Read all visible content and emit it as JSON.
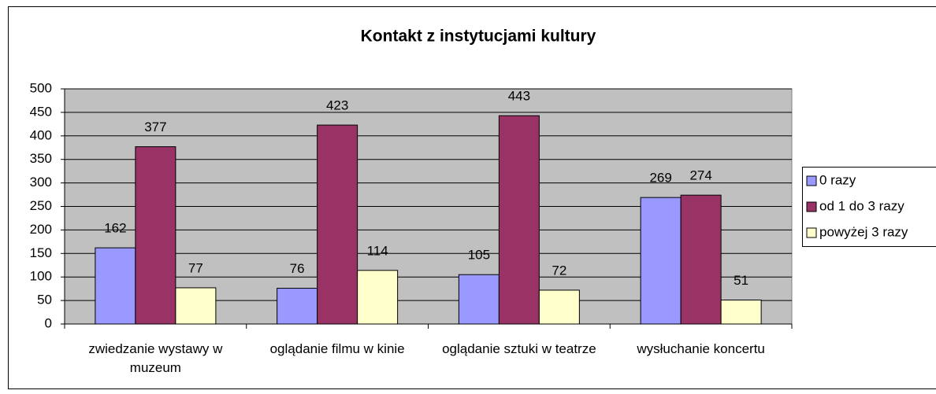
{
  "chart_data": {
    "type": "bar",
    "title": "Kontakt z instytucjami kultury",
    "categories": [
      "zwiedzanie wystawy w muzeum",
      "oglądanie filmu w kinie",
      "oglądanie sztuki w teatrze",
      "wysłuchanie koncertu"
    ],
    "series": [
      {
        "name": "0 razy",
        "color": "#9999ff",
        "values": [
          162,
          76,
          105,
          269
        ]
      },
      {
        "name": "od 1 do 3 razy",
        "color": "#993366",
        "values": [
          377,
          423,
          443,
          274
        ]
      },
      {
        "name": "powyżej 3 razy",
        "color": "#ffffcc",
        "values": [
          77,
          114,
          72,
          51
        ]
      }
    ],
    "ylim": [
      0,
      500
    ],
    "yticks": [
      0,
      50,
      100,
      150,
      200,
      250,
      300,
      350,
      400,
      450,
      500
    ],
    "grid": true,
    "legend": "right"
  }
}
